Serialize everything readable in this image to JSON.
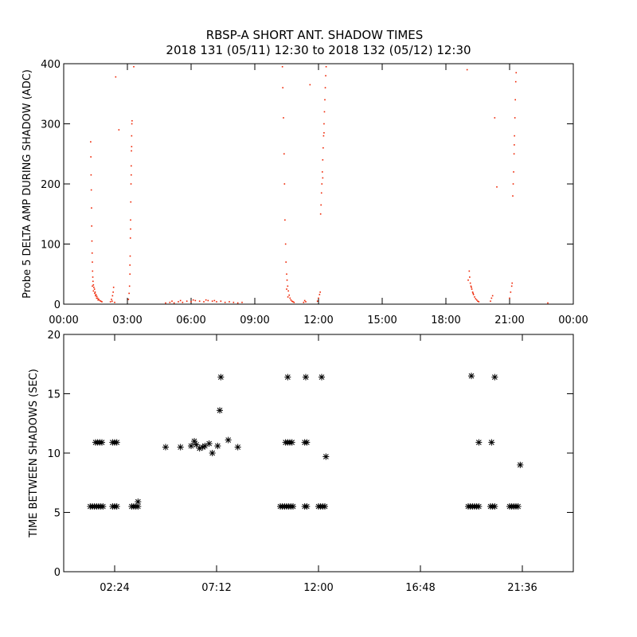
{
  "title_line1": "RBSP-A SHORT ANT. SHADOW TIMES",
  "title_line2": "2018 131 (05/11) 12:30 to 2018 132 (05/12) 12:30",
  "chart_data": [
    {
      "type": "scatter",
      "ylabel": "Probe 5 DELTA AMP DURING SHADOW (ADC)",
      "xlim_hours": [
        0,
        24
      ],
      "ylim": [
        0,
        400
      ],
      "x_ticks": [
        {
          "h": 0,
          "label": "00:00"
        },
        {
          "h": 3,
          "label": "03:00"
        },
        {
          "h": 6,
          "label": "06:00"
        },
        {
          "h": 9,
          "label": "09:00"
        },
        {
          "h": 12,
          "label": "12:00"
        },
        {
          "h": 15,
          "label": "15:00"
        },
        {
          "h": 18,
          "label": "18:00"
        },
        {
          "h": 21,
          "label": "21:00"
        },
        {
          "h": 24,
          "label": "00:00"
        }
      ],
      "y_ticks": [
        0,
        100,
        200,
        300,
        400
      ],
      "series": [
        {
          "color": "#ee2200",
          "points": [
            [
              1.27,
              270
            ],
            [
              1.28,
              245
            ],
            [
              1.29,
              215
            ],
            [
              1.3,
              190
            ],
            [
              1.31,
              160
            ],
            [
              1.32,
              130
            ],
            [
              1.33,
              105
            ],
            [
              1.34,
              85
            ],
            [
              1.35,
              70
            ],
            [
              1.36,
              55
            ],
            [
              1.37,
              45
            ],
            [
              1.38,
              38
            ],
            [
              1.4,
              32
            ],
            [
              1.42,
              28
            ],
            [
              1.45,
              25
            ],
            [
              1.48,
              20
            ],
            [
              1.52,
              16
            ],
            [
              1.56,
              13
            ],
            [
              1.6,
              10
            ],
            [
              1.65,
              8
            ],
            [
              1.7,
              6
            ],
            [
              1.75,
              5
            ],
            [
              1.8,
              4
            ],
            [
              1.35,
              30
            ],
            [
              1.4,
              22
            ],
            [
              1.46,
              18
            ],
            [
              1.5,
              14
            ],
            [
              1.55,
              10
            ],
            [
              1.62,
              7
            ],
            [
              2.2,
              4
            ],
            [
              2.25,
              8
            ],
            [
              2.3,
              14
            ],
            [
              2.33,
              20
            ],
            [
              2.35,
              28
            ],
            [
              2.28,
              5
            ],
            [
              2.4,
              3
            ],
            [
              2.45,
              378
            ],
            [
              2.6,
              290
            ],
            [
              3.05,
              8
            ],
            [
              3.08,
              18
            ],
            [
              3.1,
              30
            ],
            [
              3.12,
              50
            ],
            [
              3.13,
              80
            ],
            [
              3.14,
              110
            ],
            [
              3.15,
              140
            ],
            [
              3.16,
              170
            ],
            [
              3.17,
              200
            ],
            [
              3.18,
              230
            ],
            [
              3.19,
              255
            ],
            [
              3.2,
              280
            ],
            [
              3.21,
              300
            ],
            [
              3.22,
              305
            ],
            [
              3.18,
              215
            ],
            [
              3.2,
              262
            ],
            [
              3.15,
              125
            ],
            [
              3.12,
              65
            ],
            [
              3.3,
              395
            ],
            [
              4.8,
              2
            ],
            [
              5.0,
              3
            ],
            [
              5.2,
              2
            ],
            [
              5.4,
              4
            ],
            [
              5.6,
              3
            ],
            [
              5.8,
              5
            ],
            [
              6.0,
              4
            ],
            [
              6.2,
              6
            ],
            [
              6.4,
              5
            ],
            [
              6.6,
              4
            ],
            [
              6.8,
              6
            ],
            [
              7.0,
              5
            ],
            [
              7.2,
              4
            ],
            [
              7.4,
              5
            ],
            [
              7.6,
              3
            ],
            [
              7.8,
              4
            ],
            [
              8.0,
              3
            ],
            [
              8.2,
              2
            ],
            [
              8.4,
              3
            ],
            [
              5.1,
              5
            ],
            [
              5.5,
              6
            ],
            [
              6.1,
              7
            ],
            [
              6.7,
              7
            ],
            [
              7.1,
              6
            ],
            [
              10.3,
              395
            ],
            [
              10.32,
              360
            ],
            [
              10.35,
              310
            ],
            [
              10.38,
              250
            ],
            [
              10.4,
              200
            ],
            [
              10.42,
              140
            ],
            [
              10.45,
              100
            ],
            [
              10.47,
              70
            ],
            [
              10.5,
              50
            ],
            [
              10.52,
              40
            ],
            [
              10.55,
              30
            ],
            [
              10.58,
              22
            ],
            [
              10.62,
              15
            ],
            [
              10.66,
              10
            ],
            [
              10.7,
              7
            ],
            [
              10.75,
              5
            ],
            [
              10.8,
              4
            ],
            [
              10.85,
              3
            ],
            [
              10.5,
              25
            ],
            [
              10.56,
              12
            ],
            [
              11.3,
              3
            ],
            [
              11.35,
              6
            ],
            [
              11.4,
              4
            ],
            [
              11.6,
              365
            ],
            [
              11.95,
              5
            ],
            [
              12.0,
              10
            ],
            [
              12.05,
              16
            ],
            [
              12.08,
              20
            ],
            [
              12.1,
              150
            ],
            [
              12.12,
              165
            ],
            [
              12.14,
              185
            ],
            [
              12.16,
              200
            ],
            [
              12.18,
              220
            ],
            [
              12.2,
              240
            ],
            [
              12.22,
              260
            ],
            [
              12.24,
              280
            ],
            [
              12.26,
              300
            ],
            [
              12.28,
              320
            ],
            [
              12.3,
              340
            ],
            [
              12.32,
              360
            ],
            [
              12.34,
              380
            ],
            [
              12.36,
              395
            ],
            [
              12.2,
              210
            ],
            [
              12.26,
              285
            ],
            [
              19.0,
              390
            ],
            [
              19.05,
              40
            ],
            [
              19.1,
              55
            ],
            [
              19.12,
              45
            ],
            [
              19.15,
              35
            ],
            [
              19.18,
              30
            ],
            [
              19.22,
              25
            ],
            [
              19.26,
              20
            ],
            [
              19.3,
              16
            ],
            [
              19.35,
              12
            ],
            [
              19.4,
              9
            ],
            [
              19.45,
              7
            ],
            [
              19.5,
              5
            ],
            [
              19.55,
              4
            ],
            [
              19.2,
              28
            ],
            [
              19.28,
              18
            ],
            [
              20.1,
              5
            ],
            [
              20.15,
              10
            ],
            [
              20.2,
              14
            ],
            [
              20.3,
              310
            ],
            [
              20.4,
              195
            ],
            [
              21.0,
              10
            ],
            [
              21.05,
              20
            ],
            [
              21.1,
              30
            ],
            [
              21.12,
              35
            ],
            [
              21.15,
              180
            ],
            [
              21.17,
              200
            ],
            [
              21.19,
              220
            ],
            [
              21.21,
              250
            ],
            [
              21.23,
              280
            ],
            [
              21.25,
              310
            ],
            [
              21.27,
              340
            ],
            [
              21.29,
              370
            ],
            [
              21.31,
              385
            ],
            [
              21.22,
              265
            ],
            [
              22.8,
              2
            ]
          ]
        }
      ]
    },
    {
      "type": "scatter",
      "ylabel": "TIME BETWEEN SHADOWS (SEC)",
      "xlim_hours": [
        0,
        24
      ],
      "ylim": [
        0,
        20
      ],
      "x_ticks": [
        {
          "h": 2.4,
          "label": "02:24"
        },
        {
          "h": 7.2,
          "label": "07:12"
        },
        {
          "h": 12.0,
          "label": "12:00"
        },
        {
          "h": 16.8,
          "label": "16:48"
        },
        {
          "h": 21.6,
          "label": "21:36"
        }
      ],
      "y_ticks": [
        0,
        5,
        10,
        15,
        20
      ],
      "series": [
        {
          "color": "#000000",
          "points": [
            [
              1.25,
              5.5
            ],
            [
              1.35,
              5.5
            ],
            [
              1.45,
              5.5
            ],
            [
              1.55,
              5.5
            ],
            [
              1.65,
              5.5
            ],
            [
              1.75,
              5.5
            ],
            [
              1.85,
              5.5
            ],
            [
              1.5,
              10.9
            ],
            [
              1.6,
              10.9
            ],
            [
              1.7,
              10.9
            ],
            [
              1.8,
              10.9
            ],
            [
              2.3,
              5.5
            ],
            [
              2.4,
              5.5
            ],
            [
              2.5,
              5.5
            ],
            [
              2.3,
              10.9
            ],
            [
              2.4,
              10.9
            ],
            [
              2.5,
              10.9
            ],
            [
              3.2,
              5.5
            ],
            [
              3.3,
              5.5
            ],
            [
              3.4,
              5.5
            ],
            [
              3.5,
              5.5
            ],
            [
              3.5,
              5.9
            ],
            [
              4.8,
              10.5
            ],
            [
              5.5,
              10.5
            ],
            [
              6.0,
              10.6
            ],
            [
              6.15,
              11.0
            ],
            [
              6.25,
              10.7
            ],
            [
              6.4,
              10.4
            ],
            [
              6.55,
              10.5
            ],
            [
              6.65,
              10.6
            ],
            [
              6.85,
              10.8
            ],
            [
              7.0,
              10.0
            ],
            [
              7.25,
              10.6
            ],
            [
              7.35,
              13.6
            ],
            [
              7.4,
              16.4
            ],
            [
              7.75,
              11.1
            ],
            [
              8.2,
              10.5
            ],
            [
              10.2,
              5.5
            ],
            [
              10.3,
              5.5
            ],
            [
              10.4,
              5.5
            ],
            [
              10.5,
              5.5
            ],
            [
              10.6,
              5.5
            ],
            [
              10.7,
              5.5
            ],
            [
              10.8,
              5.5
            ],
            [
              10.45,
              10.9
            ],
            [
              10.55,
              10.9
            ],
            [
              10.65,
              10.9
            ],
            [
              10.75,
              10.9
            ],
            [
              10.55,
              16.4
            ],
            [
              11.35,
              5.5
            ],
            [
              11.45,
              5.5
            ],
            [
              11.35,
              10.9
            ],
            [
              11.45,
              10.9
            ],
            [
              11.4,
              16.4
            ],
            [
              12.0,
              5.5
            ],
            [
              12.1,
              5.5
            ],
            [
              12.2,
              5.5
            ],
            [
              12.3,
              5.5
            ],
            [
              12.15,
              16.4
            ],
            [
              12.35,
              9.7
            ],
            [
              19.05,
              5.5
            ],
            [
              19.15,
              5.5
            ],
            [
              19.25,
              5.5
            ],
            [
              19.35,
              5.5
            ],
            [
              19.45,
              5.5
            ],
            [
              19.55,
              5.5
            ],
            [
              19.2,
              16.5
            ],
            [
              19.55,
              10.9
            ],
            [
              20.1,
              5.5
            ],
            [
              20.2,
              5.5
            ],
            [
              20.3,
              5.5
            ],
            [
              20.15,
              10.9
            ],
            [
              20.3,
              16.4
            ],
            [
              21.0,
              5.5
            ],
            [
              21.1,
              5.5
            ],
            [
              21.2,
              5.5
            ],
            [
              21.3,
              5.5
            ],
            [
              21.4,
              5.5
            ],
            [
              21.5,
              9.0
            ]
          ]
        }
      ]
    }
  ]
}
